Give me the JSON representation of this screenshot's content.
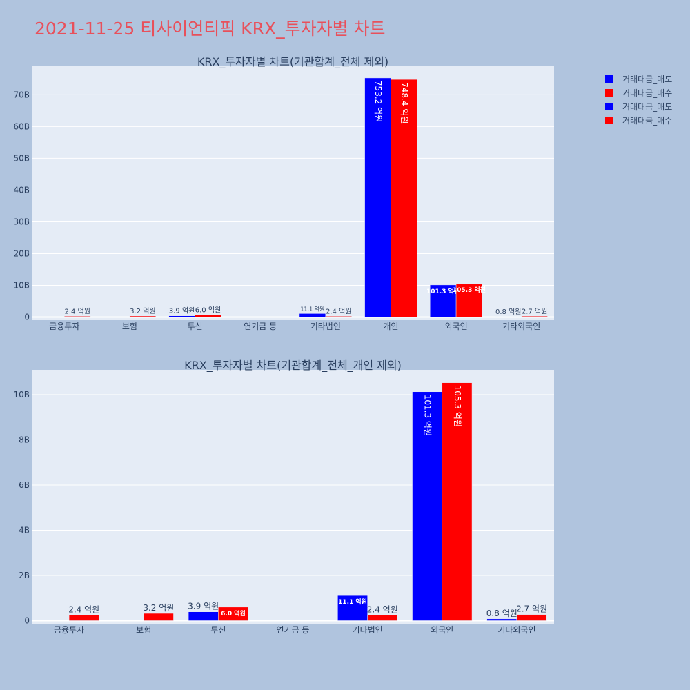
{
  "title": "2021-11-25 티사이언티픽 KRX_투자자별 차트",
  "colors": {
    "sell": "#0000ff",
    "buy": "#ff0000",
    "plot_bg": "#e5ecf6",
    "page_bg": "#b0c4de",
    "title": "#e8505b"
  },
  "legend": [
    {
      "name": "거래대금_매도",
      "color": "#0000ff"
    },
    {
      "name": "거래대금_매수",
      "color": "#ff0000"
    },
    {
      "name": "거래대금_매도",
      "color": "#0000ff"
    },
    {
      "name": "거래대금_매수",
      "color": "#ff0000"
    }
  ],
  "chart_data": [
    {
      "type": "bar",
      "title": "KRX_투자자별 차트(기관합계_전체 제외)",
      "categories": [
        "금융투자",
        "보험",
        "투신",
        "연기금 등",
        "기타법인",
        "개인",
        "외국인",
        "기타외국인"
      ],
      "series": [
        {
          "name": "거래대금_매도",
          "color": "#0000ff",
          "values": [
            0,
            0,
            390000000,
            0,
            1110000000,
            75320000000,
            10130000000,
            80000000
          ],
          "labels": [
            "",
            "",
            "3.9 억원",
            "",
            "11.1 억원",
            "753.2 억원",
            "101.3 억원",
            "0.8 억원"
          ]
        },
        {
          "name": "거래대금_매수",
          "color": "#ff0000",
          "values": [
            240000000,
            320000000,
            600000000,
            0,
            240000000,
            74840000000,
            10530000000,
            270000000
          ],
          "labels": [
            "2.4 억원",
            "3.2 억원",
            "6.0 억원",
            "",
            "2.4 억원",
            "748.4 억원",
            "105.3 억원",
            "2.7 억원"
          ]
        }
      ],
      "yticks": [
        "0",
        "10B",
        "20B",
        "30B",
        "40B",
        "50B",
        "60B",
        "70B"
      ],
      "ylim": [
        0,
        79000000000
      ],
      "grid": true,
      "legend_position": "top-right"
    },
    {
      "type": "bar",
      "title": "KRX_투자자별 차트(기관합계_전체_개인 제외)",
      "categories": [
        "금융투자",
        "보험",
        "투신",
        "연기금 등",
        "기타법인",
        "외국인",
        "기타외국인"
      ],
      "series": [
        {
          "name": "거래대금_매도",
          "color": "#0000ff",
          "values": [
            0,
            0,
            390000000,
            0,
            1110000000,
            10130000000,
            80000000
          ],
          "labels": [
            "",
            "",
            "3.9 억원",
            "",
            "11.1 억원",
            "101.3 억원",
            "0.8 억원"
          ]
        },
        {
          "name": "거래대금_매수",
          "color": "#ff0000",
          "values": [
            240000000,
            320000000,
            600000000,
            0,
            240000000,
            10530000000,
            270000000
          ],
          "labels": [
            "2.4 억원",
            "3.2 억원",
            "6.0 억원",
            "",
            "2.4 억원",
            "105.3 억원",
            "2.7 억원"
          ]
        }
      ],
      "yticks": [
        "0",
        "2B",
        "4B",
        "6B",
        "8B",
        "10B"
      ],
      "ylim": [
        0,
        11100000000
      ],
      "grid": true
    }
  ]
}
